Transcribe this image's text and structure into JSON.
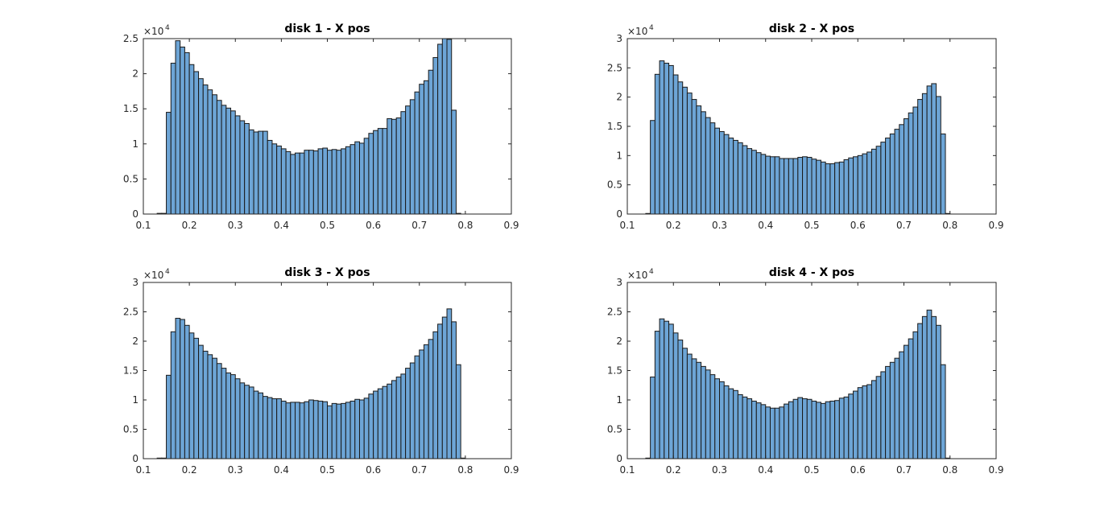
{
  "figure_bg": "#ffffff",
  "bar_color": "#6da5d6",
  "chart_data": [
    {
      "type": "bar",
      "title": "disk 1 - X pos",
      "xlim": [
        0.1,
        0.9
      ],
      "ylim": [
        0,
        25000
      ],
      "xticks": [
        "0.1",
        "0.2",
        "0.3",
        "0.4",
        "0.5",
        "0.6",
        "0.7",
        "0.8",
        "0.9"
      ],
      "yticks": [
        "0",
        "0.5",
        "1",
        "1.5",
        "2",
        "2.5"
      ],
      "y_exponent_label": "×10",
      "y_exponent_power": "4",
      "bin_start": 0.13,
      "bin_width": 0.01,
      "values": [
        100,
        100,
        14500,
        21500,
        24700,
        23800,
        23000,
        21300,
        20300,
        19300,
        18400,
        17700,
        17000,
        16200,
        15500,
        15100,
        14700,
        14000,
        13300,
        12900,
        12000,
        11700,
        11800,
        11800,
        10500,
        10000,
        9700,
        9300,
        8900,
        8500,
        8700,
        8700,
        9100,
        9100,
        9000,
        9300,
        9400,
        9100,
        9200,
        9100,
        9300,
        9600,
        9900,
        10300,
        10100,
        10800,
        11500,
        11900,
        12200,
        12200,
        13600,
        13500,
        13700,
        14600,
        15400,
        16300,
        17400,
        18500,
        19000,
        20500,
        22300,
        24200,
        25000,
        24900,
        14800,
        100
      ]
    },
    {
      "type": "bar",
      "title": "disk 2 - X pos",
      "xlim": [
        0.1,
        0.9
      ],
      "ylim": [
        0,
        30000
      ],
      "xticks": [
        "0.1",
        "0.2",
        "0.3",
        "0.4",
        "0.5",
        "0.6",
        "0.7",
        "0.8",
        "0.9"
      ],
      "yticks": [
        "0",
        "0.5",
        "1",
        "1.5",
        "2",
        "2.5",
        "3"
      ],
      "y_exponent_label": "×10",
      "y_exponent_power": "4",
      "bin_start": 0.13,
      "bin_width": 0.01,
      "values": [
        0,
        100,
        16000,
        23900,
        26200,
        25800,
        25400,
        23800,
        22600,
        21700,
        20700,
        19600,
        18500,
        17500,
        16500,
        15600,
        14700,
        14100,
        13600,
        13000,
        12600,
        12200,
        11700,
        11200,
        10900,
        10500,
        10200,
        9900,
        9800,
        9800,
        9500,
        9500,
        9500,
        9500,
        9700,
        9800,
        9700,
        9400,
        9200,
        8900,
        8600,
        8600,
        8800,
        8900,
        9300,
        9600,
        9800,
        10000,
        10300,
        10600,
        11100,
        11600,
        12300,
        13000,
        13700,
        14500,
        15300,
        16300,
        17300,
        18300,
        19600,
        20600,
        21900,
        22300,
        20100,
        13700,
        100
      ]
    },
    {
      "type": "bar",
      "title": "disk 3 - X pos",
      "xlim": [
        0.1,
        0.9
      ],
      "ylim": [
        0,
        30000
      ],
      "xticks": [
        "0.1",
        "0.2",
        "0.3",
        "0.4",
        "0.5",
        "0.6",
        "0.7",
        "0.8",
        "0.9"
      ],
      "yticks": [
        "0",
        "0.5",
        "1",
        "1.5",
        "2",
        "2.5",
        "3"
      ],
      "y_exponent_label": "×10",
      "y_exponent_power": "4",
      "bin_start": 0.13,
      "bin_width": 0.01,
      "values": [
        100,
        100,
        14200,
        21600,
        23900,
        23700,
        22700,
        21400,
        20500,
        19300,
        18300,
        17700,
        17100,
        16200,
        15400,
        14600,
        14300,
        13600,
        12900,
        12500,
        12200,
        11500,
        11200,
        10600,
        10400,
        10200,
        10200,
        9800,
        9500,
        9600,
        9600,
        9500,
        9700,
        10000,
        9900,
        9800,
        9700,
        9000,
        9400,
        9300,
        9400,
        9600,
        9800,
        10100,
        10000,
        10300,
        11000,
        11500,
        11900,
        12300,
        12700,
        13300,
        13900,
        14400,
        15400,
        16300,
        17500,
        18500,
        19400,
        20300,
        21600,
        22900,
        24100,
        25500,
        23300,
        16000,
        100
      ]
    },
    {
      "type": "bar",
      "title": "disk 4 - X pos",
      "xlim": [
        0.1,
        0.9
      ],
      "ylim": [
        0,
        30000
      ],
      "xticks": [
        "0.1",
        "0.2",
        "0.3",
        "0.4",
        "0.5",
        "0.6",
        "0.7",
        "0.8",
        "0.9"
      ],
      "yticks": [
        "0",
        "0.5",
        "1",
        "1.5",
        "2",
        "2.5",
        "3"
      ],
      "y_exponent_label": "×10",
      "y_exponent_power": "4",
      "bin_start": 0.13,
      "bin_width": 0.01,
      "values": [
        0,
        100,
        13900,
        21700,
        23800,
        23400,
        22900,
        21400,
        20200,
        18800,
        17800,
        17000,
        16400,
        15700,
        15100,
        14300,
        13600,
        13100,
        12400,
        11900,
        11600,
        10900,
        10500,
        10200,
        9800,
        9500,
        9200,
        8800,
        8600,
        8600,
        8800,
        9300,
        9700,
        10100,
        10400,
        10200,
        10100,
        9800,
        9600,
        9400,
        9700,
        9800,
        9900,
        10300,
        10500,
        11000,
        11500,
        12100,
        12400,
        12600,
        13300,
        14000,
        14800,
        15700,
        16400,
        17100,
        18200,
        19300,
        20400,
        21600,
        23000,
        24200,
        25300,
        24200,
        22700,
        16000,
        100
      ]
    }
  ]
}
